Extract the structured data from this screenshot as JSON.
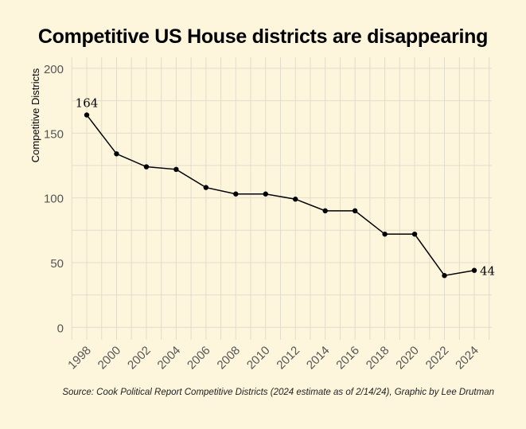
{
  "chart_data": {
    "type": "line",
    "title": "Competitive US House districts are disappearing",
    "xlabel": "",
    "ylabel": "Competitive Districts",
    "x": [
      1998,
      2000,
      2002,
      2004,
      2006,
      2008,
      2010,
      2012,
      2014,
      2016,
      2018,
      2020,
      2022,
      2024
    ],
    "values": [
      164,
      134,
      124,
      122,
      108,
      103,
      103,
      99,
      90,
      90,
      72,
      72,
      40,
      44
    ],
    "ylim": [
      0,
      200
    ],
    "yticks": [
      0,
      50,
      100,
      150,
      200
    ],
    "xticks": [
      "1998",
      "2000",
      "2002",
      "2004",
      "2006",
      "2008",
      "2010",
      "2012",
      "2014",
      "2016",
      "2018",
      "2020",
      "2022",
      "2024"
    ],
    "annotations": [
      {
        "x": 1998,
        "label": "164"
      },
      {
        "x": 2024,
        "label": "44"
      }
    ],
    "grid": true,
    "line_color": "#000000",
    "background": "#fdf6dc",
    "source": "Source: Cook Political Report Competitive Districts (2024 estimate as of 2/14/24), Graphic by Lee Drutman"
  }
}
